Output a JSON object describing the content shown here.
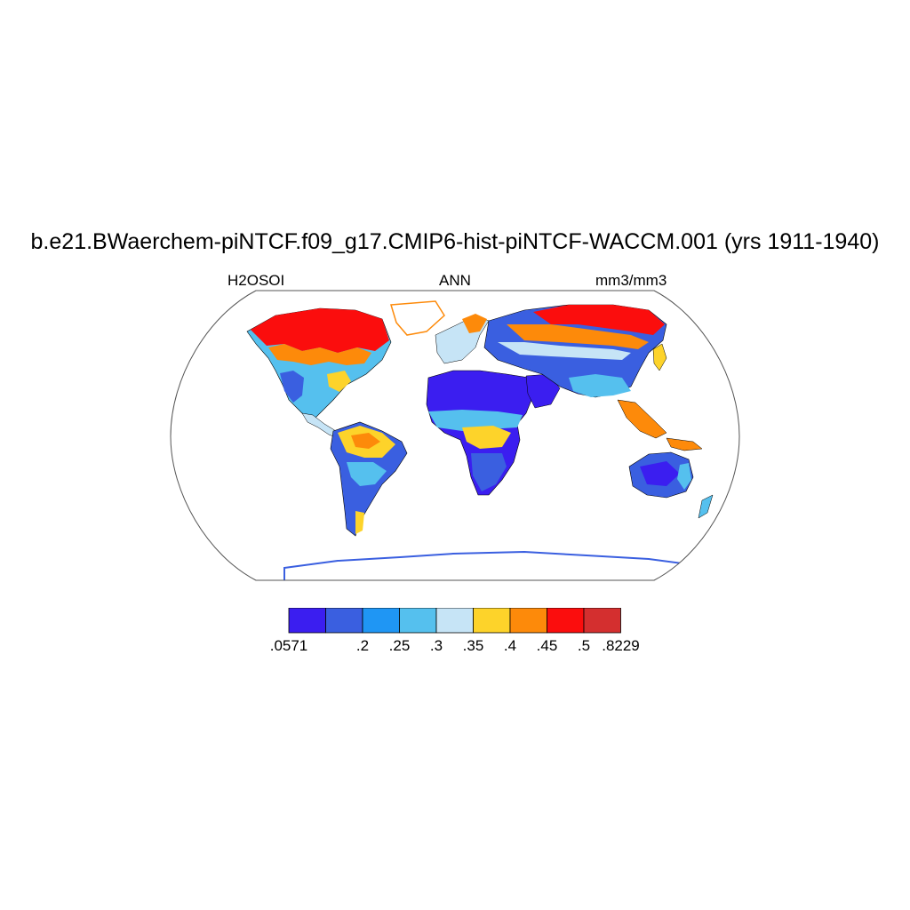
{
  "title": "b.e21.BWaerchem-piNTCF.f09_g17.CMIP6-hist-piNTCF-WACCM.001 (yrs 1911-1940)",
  "variable": "H2OSOI",
  "season": "ANN",
  "units": "mm3/mm3",
  "projection": "Robinson",
  "colorbar": {
    "colors": [
      "#3b1ef0",
      "#3a5fe0",
      "#1f96f4",
      "#55c0ee",
      "#c6e4f6",
      "#fdd32a",
      "#fd8a0a",
      "#fb0d0d",
      "#d42f2f"
    ],
    "labels": [
      ".0571",
      "",
      ".2",
      ".25",
      ".3",
      ".35",
      ".4",
      ".45",
      ".5",
      ".8229"
    ]
  }
}
